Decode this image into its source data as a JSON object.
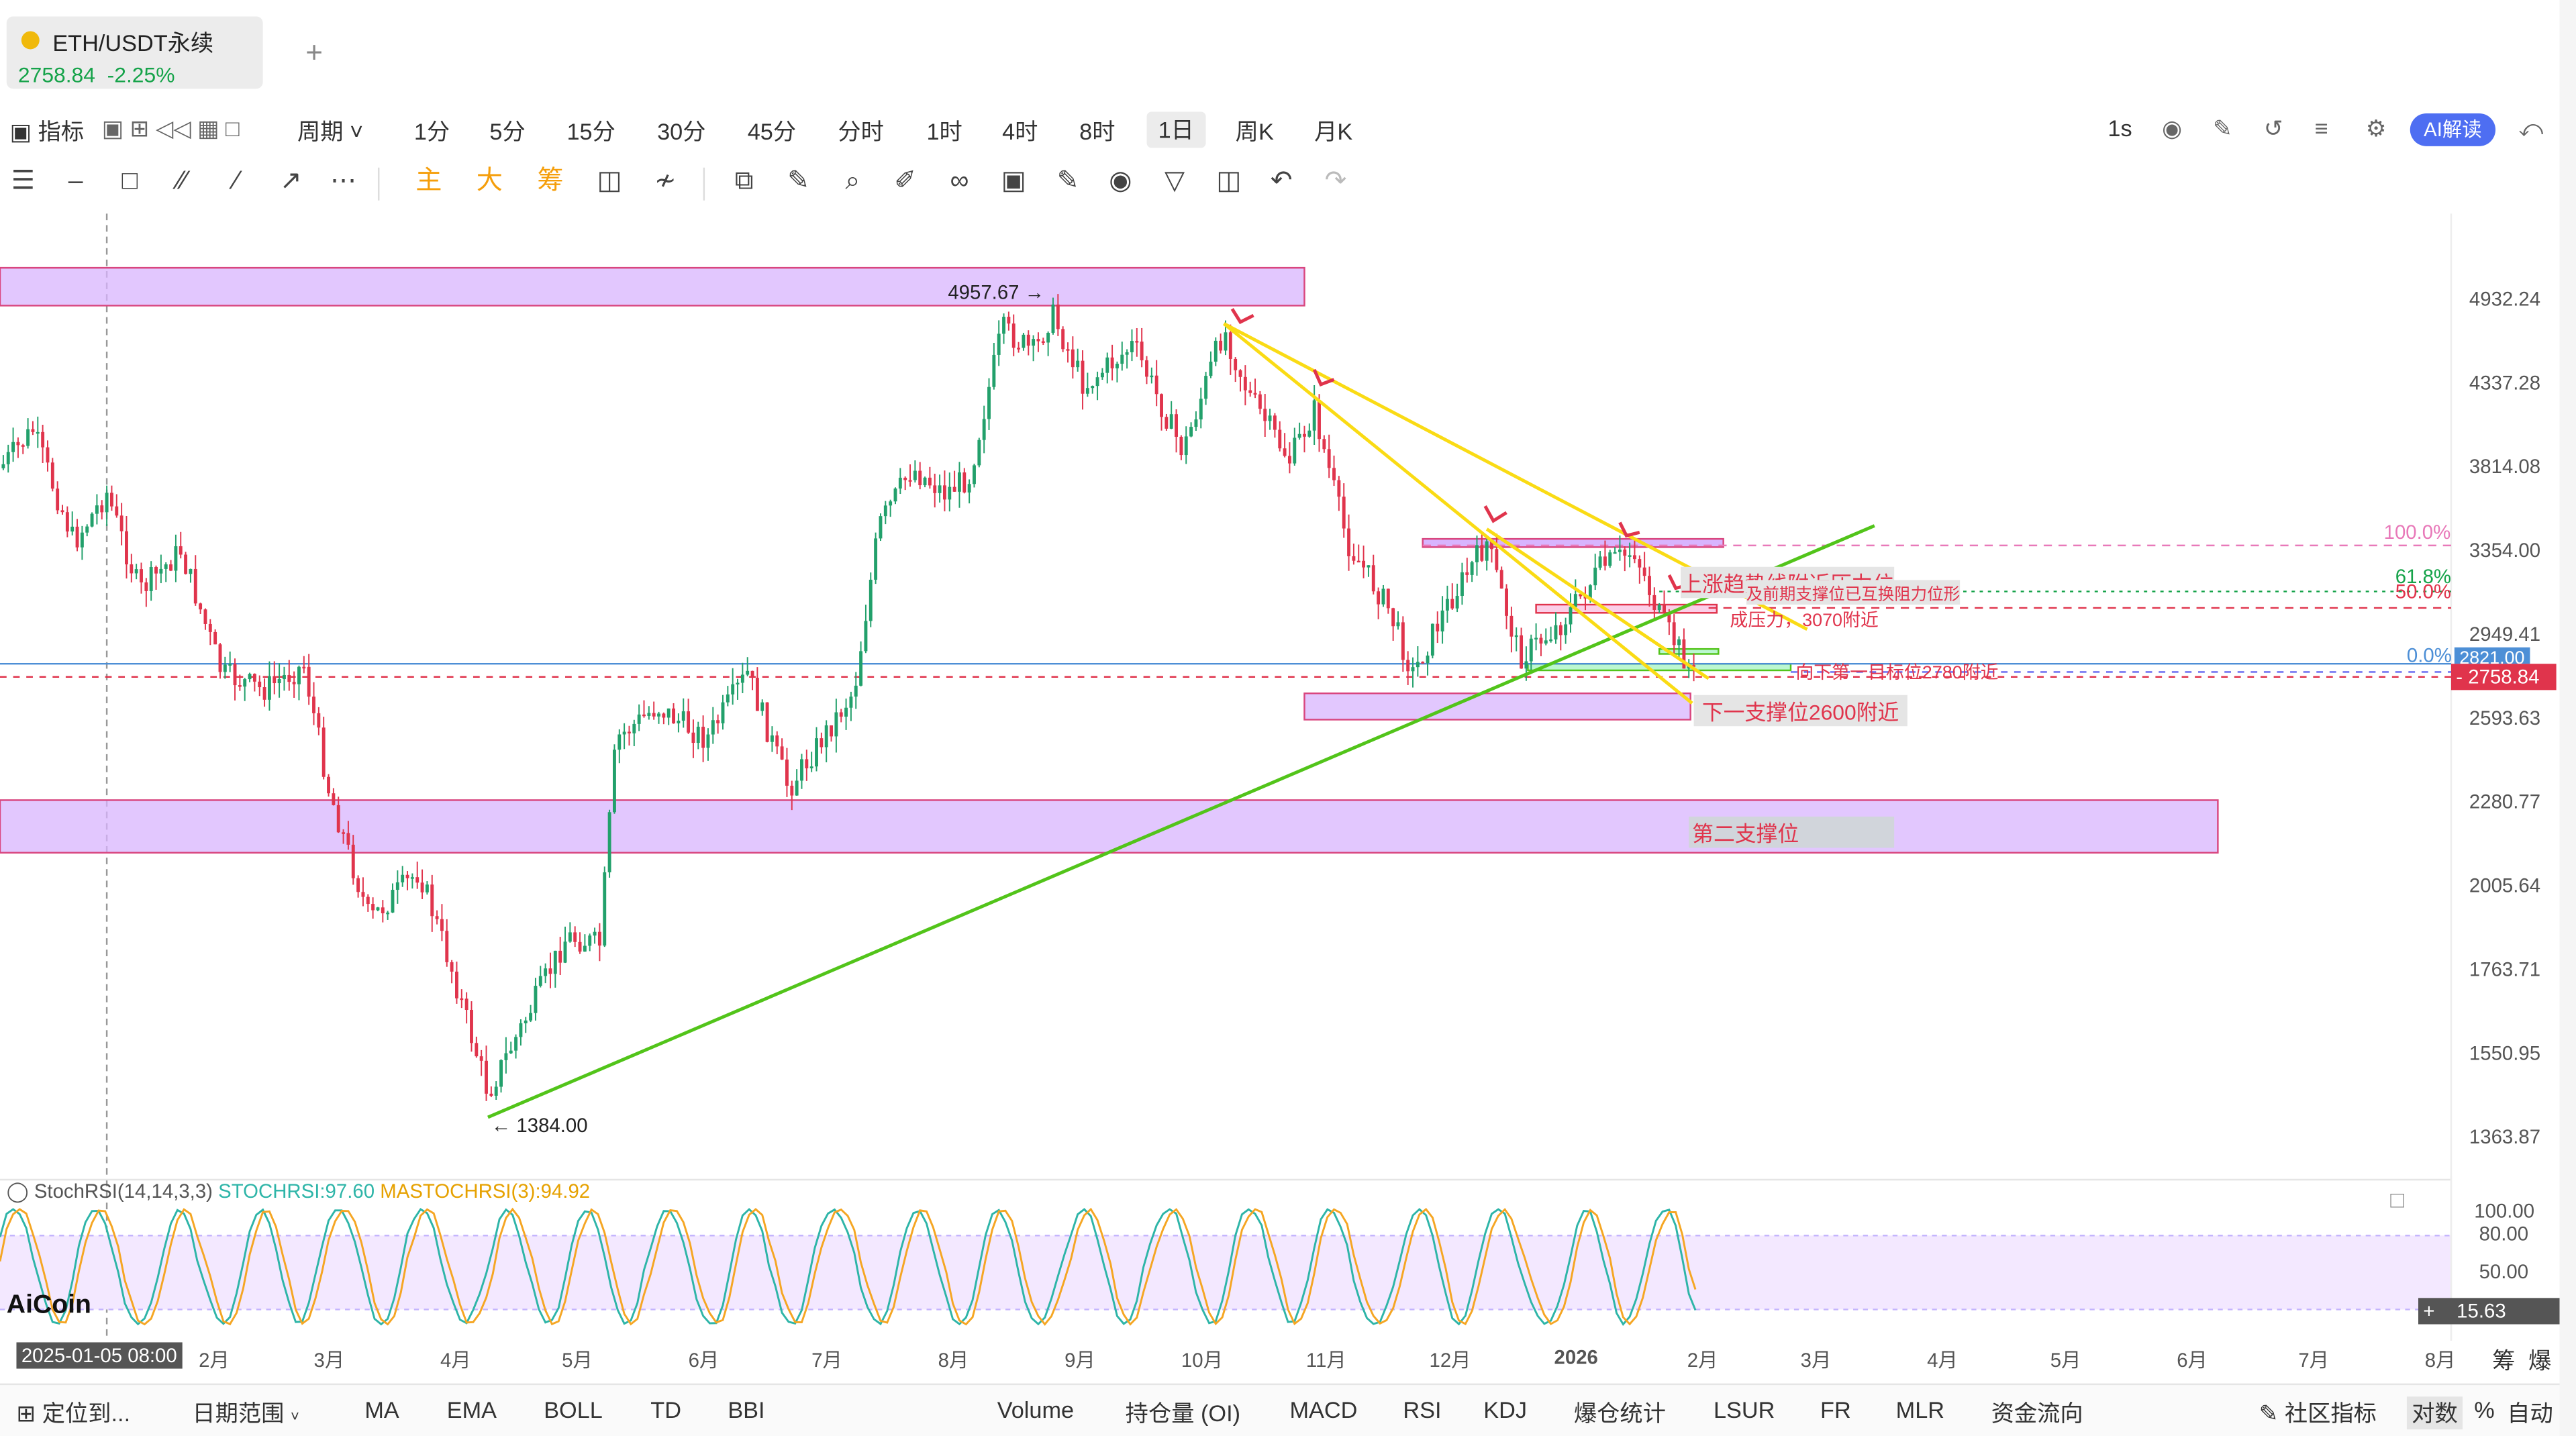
{
  "tab": {
    "symbol": "ETH/USDT永续",
    "price": "2758.84",
    "change": "-2.25%",
    "add": "+"
  },
  "toolbar": {
    "indicator": "指标",
    "period": "周期",
    "intervals": [
      "1分",
      "5分",
      "15分",
      "30分",
      "45分",
      "分时",
      "1时",
      "4时",
      "8时",
      "1日",
      "周K",
      "月K"
    ],
    "active_interval": "1日",
    "speed": "1s",
    "ai": "AI解读"
  },
  "drawtools": {
    "main": "主",
    "big": "大",
    "chip": "筹"
  },
  "axis": {
    "prices": [
      "4932.24",
      "4337.28",
      "3814.08",
      "3354.00",
      "2949.41",
      "2593.63",
      "2280.77",
      "2005.64",
      "1763.71",
      "1550.95",
      "1363.87"
    ],
    "last_price": "2758.84",
    "blue_line_price": "2821.00",
    "stoch_levels": [
      "100.00",
      "80.00",
      "50.00"
    ],
    "stoch_value": "15.63"
  },
  "annotations": {
    "high": "4957.67 →",
    "low": "← 1384.00",
    "fib100": "100.0%",
    "fib618": "61.8%",
    "fib50": "50.0%",
    "fib0": "0.0%",
    "resist_trend": "上涨趋势线附近压力位",
    "resist_swap": "及前期支撑位已互换阻力位形",
    "resist_3070": "成压力，3070附近",
    "target_2780": "向下第一目标位2780附近",
    "support_2600": "下一支撑位2600附近",
    "support_second": "第二支撑位"
  },
  "stoch": {
    "name": "StochRSI(14,14,3,3)",
    "k": "STOCHRSI:97.60",
    "d": "MASTOCHRSI(3):94.92"
  },
  "logo": "AiCoin",
  "timeaxis": {
    "start_date": "2025-01-05 08:00",
    "labels": [
      "2月",
      "3月",
      "4月",
      "5月",
      "6月",
      "7月",
      "8月",
      "9月",
      "10月",
      "11月",
      "12月",
      "2026",
      "2月",
      "3月",
      "4月",
      "5月",
      "6月",
      "7月",
      "8月"
    ],
    "right": [
      "筹",
      "爆"
    ]
  },
  "bottom": {
    "locate": "定位到...",
    "range": "日期范围",
    "indicators": [
      "MA",
      "EMA",
      "BOLL",
      "TD",
      "BBI"
    ],
    "sub_indicators": [
      "Volume",
      "持仓量 (OI)",
      "MACD",
      "RSI",
      "KDJ",
      "爆仓统计",
      "LSUR",
      "FR",
      "MLR",
      "资金流向"
    ],
    "community": "社区指标",
    "log": "对数",
    "percent": "%",
    "auto": "自动"
  },
  "colors": {
    "up": "#22a06b",
    "down": "#e0344c",
    "zone": "#d8b4fe",
    "trend_green": "#52c41a",
    "trend_yellow": "#fadb14"
  }
}
